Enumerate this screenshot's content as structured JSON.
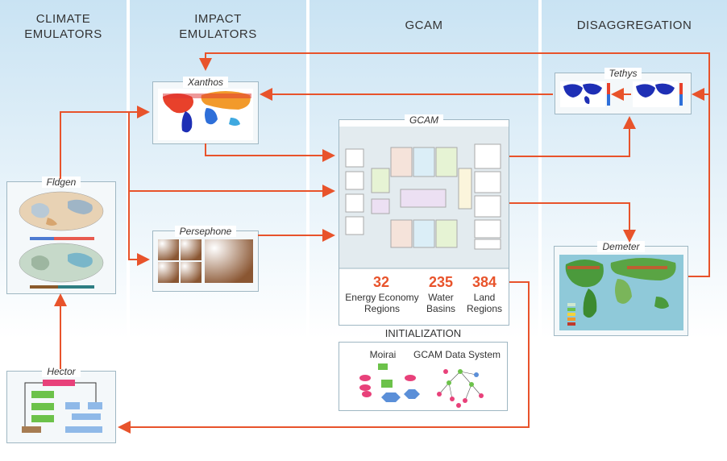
{
  "columns": {
    "climate": "CLIMATE\nEMULATORS",
    "impact": "IMPACT\nEMULATORS",
    "gcam": "GCAM",
    "disaggregation": "DISAGGREGATION"
  },
  "models": {
    "fldgen": "Fldgen",
    "hector": "Hector",
    "xanthos": "Xanthos",
    "persephone": "Persephone",
    "gcam": "GCAM",
    "tethys": "Tethys",
    "demeter": "Demeter"
  },
  "stats": [
    {
      "number": "32",
      "label": "Energy Economy\nRegions"
    },
    {
      "number": "235",
      "label": "Water\nBasins"
    },
    {
      "number": "384",
      "label": "Land\nRegions"
    }
  ],
  "initialization": {
    "title": "INITIALIZATION",
    "moirai": "Moirai",
    "data_system": "GCAM Data System"
  },
  "colors": {
    "arrow": "#e8532b",
    "column_top": "#c9e3f3",
    "box_border": "#9fb7c3"
  }
}
